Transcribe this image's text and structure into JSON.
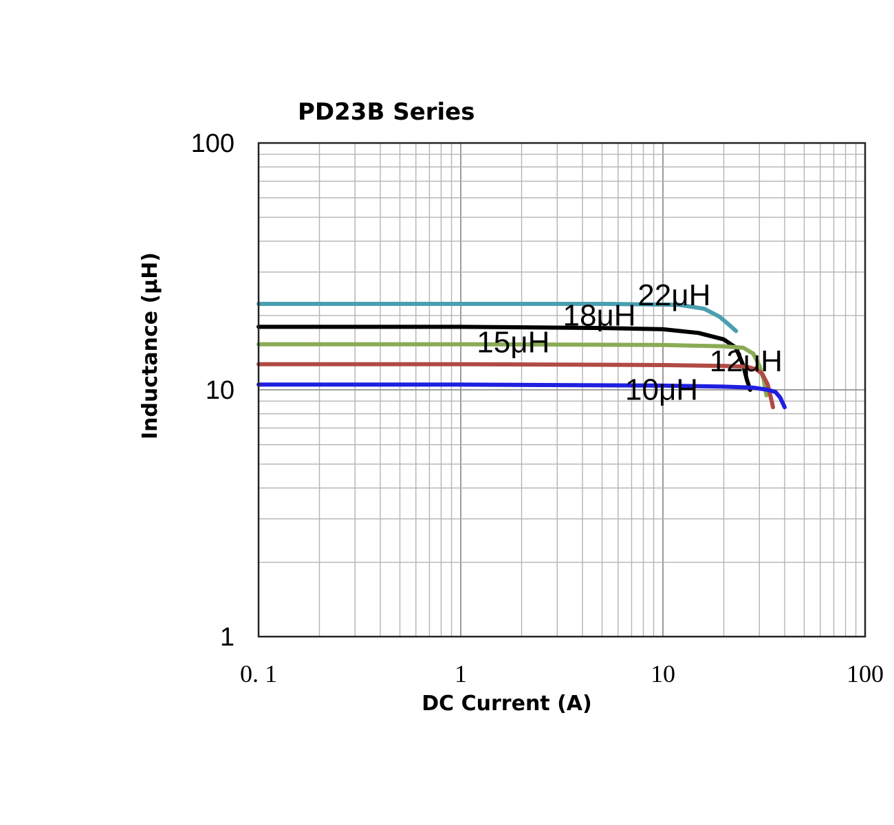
{
  "chart_data": {
    "type": "line",
    "title": "PD23B Series",
    "xlabel": "DC Current (A)",
    "ylabel": "Inductance (μH)",
    "xscale": "log",
    "yscale": "log",
    "xlim": [
      0.1,
      100
    ],
    "ylim": [
      1,
      100
    ],
    "x_ticks": [
      0.1,
      1,
      10,
      100
    ],
    "x_tick_labels": [
      "0. 1",
      "1",
      "10",
      "100"
    ],
    "y_ticks": [
      1,
      10,
      100
    ],
    "y_tick_labels": [
      "1",
      "10",
      "100"
    ],
    "grid": true,
    "series": [
      {
        "name": "22μH",
        "color": "#4a9fb0",
        "points": [
          [
            0.1,
            22.3
          ],
          [
            1,
            22.3
          ],
          [
            5,
            22.3
          ],
          [
            12,
            22.1
          ],
          [
            16,
            21.3
          ],
          [
            19,
            19.8
          ],
          [
            21,
            18.5
          ],
          [
            23,
            17.3
          ]
        ]
      },
      {
        "name": "18μH",
        "color": "#000000",
        "points": [
          [
            0.1,
            18.0
          ],
          [
            1,
            18.0
          ],
          [
            5,
            17.8
          ],
          [
            10,
            17.6
          ],
          [
            15,
            17.0
          ],
          [
            20,
            16.0
          ],
          [
            23,
            14.8
          ],
          [
            25,
            12.5
          ],
          [
            26,
            11.0
          ],
          [
            27,
            10.0
          ]
        ]
      },
      {
        "name": "15μH",
        "color": "#8aab55",
        "points": [
          [
            0.1,
            15.3
          ],
          [
            1,
            15.3
          ],
          [
            10,
            15.2
          ],
          [
            20,
            15.0
          ],
          [
            25,
            14.8
          ],
          [
            28,
            14.0
          ],
          [
            30,
            12.5
          ],
          [
            31.5,
            11.0
          ],
          [
            32.5,
            9.5
          ]
        ]
      },
      {
        "name": "12μH",
        "color": "#b04a44",
        "points": [
          [
            0.1,
            12.7
          ],
          [
            1,
            12.7
          ],
          [
            10,
            12.6
          ],
          [
            20,
            12.5
          ],
          [
            26,
            12.4
          ],
          [
            29,
            12.1
          ],
          [
            31,
            11.6
          ],
          [
            33,
            10.5
          ],
          [
            34.5,
            9.0
          ],
          [
            35,
            8.5
          ]
        ]
      },
      {
        "name": "10μH",
        "color": "#1f1fe0",
        "points": [
          [
            0.1,
            10.5
          ],
          [
            1,
            10.5
          ],
          [
            10,
            10.4
          ],
          [
            20,
            10.3
          ],
          [
            28,
            10.2
          ],
          [
            33,
            10.0
          ],
          [
            36,
            9.8
          ],
          [
            38,
            9.3
          ],
          [
            40,
            8.5
          ]
        ]
      }
    ],
    "annotations": [
      {
        "text": "22μH",
        "x": 7.5,
        "y": 22.0
      },
      {
        "text": "18μH",
        "x": 3.2,
        "y": 18.2
      },
      {
        "text": "15μH",
        "x": 1.2,
        "y": 14.2
      },
      {
        "text": "12μH",
        "x": 17.0,
        "y": 11.9
      },
      {
        "text": "10μH",
        "x": 6.5,
        "y": 9.1
      }
    ]
  }
}
